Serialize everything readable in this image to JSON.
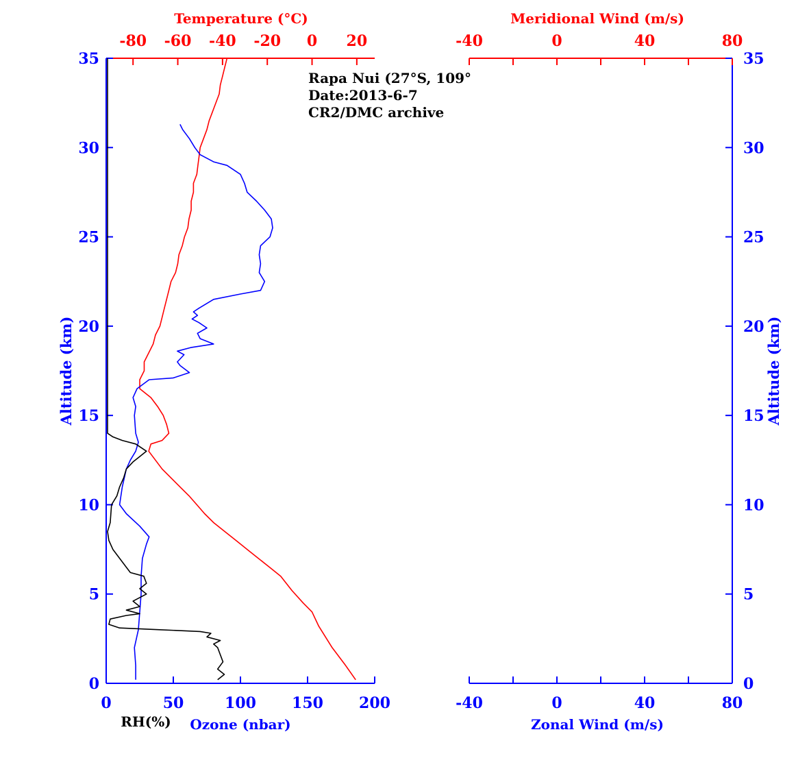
{
  "colors": {
    "red": "#ff0000",
    "blue": "#0000ff",
    "black": "#000000",
    "background": "#ffffff"
  },
  "left_panel": {
    "top_axis_label": "Temperature (°C)",
    "bottom_axis_label_ozone": "Ozone (nbar)",
    "bottom_axis_label_rh": "RH(%)",
    "y_axis_label": "Altitude (km)",
    "annotation": {
      "line1": "Rapa Nui (27°S, 109°",
      "line2": "Date:2013-6-7",
      "line3": "CR2/DMC archive"
    }
  },
  "right_panel": {
    "top_axis_label": "Meridional Wind (m/s)",
    "bottom_axis_label": "Zonal Wind (m/s)",
    "y_axis_label": "Altitude (km)"
  },
  "chart_data": [
    {
      "type": "line",
      "title": "",
      "ylabel": "Altitude (km)",
      "ylim": [
        0,
        35
      ],
      "yticks": [
        0,
        5,
        10,
        15,
        20,
        25,
        30,
        35
      ],
      "x_axes": {
        "temperature": {
          "label": "Temperature (°C)",
          "range": [
            -92,
            28
          ],
          "ticks": [
            -80,
            -60,
            -40,
            -20,
            0,
            20
          ],
          "position": "top"
        },
        "ozone": {
          "label": "Ozone (nbar)",
          "range": [
            0,
            200
          ],
          "ticks": [
            0,
            50,
            100,
            150,
            200
          ],
          "position": "bottom"
        },
        "rh": {
          "label": "RH(%)",
          "range": [
            0,
            200
          ],
          "position": "bottom"
        }
      },
      "series": [
        {
          "axis": "temperature",
          "color": "#ff0000",
          "points": [
            [
              19.5,
              0.2
            ],
            [
              15,
              1.0
            ],
            [
              9,
              2.0
            ],
            [
              3,
              3.2
            ],
            [
              0,
              4.0
            ],
            [
              -4,
              4.5
            ],
            [
              -9,
              5.2
            ],
            [
              -14,
              6.0
            ],
            [
              -19,
              6.5
            ],
            [
              -24,
              7.0
            ],
            [
              -29,
              7.5
            ],
            [
              -34,
              8.0
            ],
            [
              -39,
              8.5
            ],
            [
              -44,
              9.0
            ],
            [
              -48,
              9.5
            ],
            [
              -51.5,
              10.0
            ],
            [
              -55,
              10.5
            ],
            [
              -59,
              11.0
            ],
            [
              -63,
              11.5
            ],
            [
              -67,
              12.0
            ],
            [
              -70,
              12.5
            ],
            [
              -73,
              13.0
            ],
            [
              -72,
              13.4
            ],
            [
              -67,
              13.6
            ],
            [
              -64,
              14.0
            ],
            [
              -65,
              14.5
            ],
            [
              -66.5,
              15.0
            ],
            [
              -69,
              15.5
            ],
            [
              -72,
              16.0
            ],
            [
              -77,
              16.5
            ],
            [
              -77,
              17.0
            ],
            [
              -75,
              17.5
            ],
            [
              -75,
              18.0
            ],
            [
              -73,
              18.5
            ],
            [
              -71,
              19.0
            ],
            [
              -70,
              19.5
            ],
            [
              -68,
              20.0
            ],
            [
              -67,
              20.5
            ],
            [
              -66,
              21.0
            ],
            [
              -65,
              21.5
            ],
            [
              -64,
              22.0
            ],
            [
              -63,
              22.5
            ],
            [
              -61,
              23.0
            ],
            [
              -60,
              23.5
            ],
            [
              -59.5,
              24.0
            ],
            [
              -58,
              24.5
            ],
            [
              -57,
              25.0
            ],
            [
              -55.5,
              25.5
            ],
            [
              -55,
              26.0
            ],
            [
              -54,
              26.5
            ],
            [
              -54,
              27.0
            ],
            [
              -53,
              27.5
            ],
            [
              -53,
              28.0
            ],
            [
              -51.5,
              28.5
            ],
            [
              -51,
              29.0
            ],
            [
              -50.5,
              29.5
            ],
            [
              -50,
              30.0
            ],
            [
              -48.5,
              30.5
            ],
            [
              -47,
              31.0
            ],
            [
              -46,
              31.5
            ],
            [
              -44.5,
              32.0
            ],
            [
              -43,
              32.5
            ],
            [
              -41.5,
              33.0
            ],
            [
              -41,
              33.5
            ],
            [
              -40,
              34.0
            ],
            [
              -39,
              34.5
            ],
            [
              -38,
              35.0
            ]
          ]
        },
        {
          "axis": "ozone",
          "color": "#0000ff",
          "points": [
            [
              22,
              0.2
            ],
            [
              22,
              1.0
            ],
            [
              21,
              2.0
            ],
            [
              24,
              3.0
            ],
            [
              25,
              4.0
            ],
            [
              26,
              5.0
            ],
            [
              26,
              6.0
            ],
            [
              27,
              7.0
            ],
            [
              30,
              7.8
            ],
            [
              32,
              8.2
            ],
            [
              25,
              8.8
            ],
            [
              15,
              9.5
            ],
            [
              10,
              10.0
            ],
            [
              12,
              11.0
            ],
            [
              15,
              12.0
            ],
            [
              18,
              12.5
            ],
            [
              22,
              13.0
            ],
            [
              24,
              13.5
            ],
            [
              22,
              14.0
            ],
            [
              21,
              15.0
            ],
            [
              22,
              15.5
            ],
            [
              20,
              16.0
            ],
            [
              23,
              16.5
            ],
            [
              32,
              17.0
            ],
            [
              50,
              17.1
            ],
            [
              62,
              17.4
            ],
            [
              55,
              17.8
            ],
            [
              53,
              18.0
            ],
            [
              58,
              18.4
            ],
            [
              53,
              18.6
            ],
            [
              63,
              18.8
            ],
            [
              80,
              19.0
            ],
            [
              70,
              19.3
            ],
            [
              68,
              19.6
            ],
            [
              75,
              19.9
            ],
            [
              69,
              20.2
            ],
            [
              64,
              20.4
            ],
            [
              68,
              20.6
            ],
            [
              65,
              20.8
            ],
            [
              69,
              21.0
            ],
            [
              80,
              21.5
            ],
            [
              100,
              21.8
            ],
            [
              115,
              22.0
            ],
            [
              118,
              22.5
            ],
            [
              114,
              23.0
            ],
            [
              115,
              23.5
            ],
            [
              114,
              24.0
            ],
            [
              115,
              24.5
            ],
            [
              122,
              25.0
            ],
            [
              124,
              25.5
            ],
            [
              123,
              26.0
            ],
            [
              118,
              26.5
            ],
            [
              112,
              27.0
            ],
            [
              105,
              27.5
            ],
            [
              103,
              28.0
            ],
            [
              100,
              28.5
            ],
            [
              90,
              29.0
            ],
            [
              80,
              29.2
            ],
            [
              70,
              29.6
            ],
            [
              66,
              30.0
            ],
            [
              62,
              30.5
            ],
            [
              57,
              31.0
            ],
            [
              55,
              31.3
            ]
          ]
        },
        {
          "axis": "rh",
          "color": "#000000",
          "points": [
            [
              83,
              0.2
            ],
            [
              88,
              0.5
            ],
            [
              83,
              0.8
            ],
            [
              87,
              1.2
            ],
            [
              85,
              1.6
            ],
            [
              83,
              2.0
            ],
            [
              80,
              2.2
            ],
            [
              85,
              2.4
            ],
            [
              75,
              2.6
            ],
            [
              78,
              2.8
            ],
            [
              70,
              2.9
            ],
            [
              40,
              3.0
            ],
            [
              10,
              3.1
            ],
            [
              2,
              3.3
            ],
            [
              3,
              3.6
            ],
            [
              15,
              3.8
            ],
            [
              25,
              3.9
            ],
            [
              15,
              4.1
            ],
            [
              25,
              4.3
            ],
            [
              20,
              4.6
            ],
            [
              30,
              5.0
            ],
            [
              25,
              5.3
            ],
            [
              30,
              5.6
            ],
            [
              28,
              6.0
            ],
            [
              18,
              6.2
            ],
            [
              15,
              6.5
            ],
            [
              10,
              7.0
            ],
            [
              5,
              7.5
            ],
            [
              2,
              8.0
            ],
            [
              1,
              8.5
            ],
            [
              3,
              9.0
            ],
            [
              4,
              10.0
            ],
            [
              8,
              10.5
            ],
            [
              10,
              11.0
            ],
            [
              13,
              11.5
            ],
            [
              15,
              12.0
            ],
            [
              20,
              12.4
            ],
            [
              25,
              12.7
            ],
            [
              30,
              13.0
            ],
            [
              22,
              13.4
            ],
            [
              12,
              13.6
            ],
            [
              5,
              13.8
            ],
            [
              1,
              14.0
            ],
            [
              1,
              16.0
            ],
            [
              1,
              20.0
            ],
            [
              1,
              25.0
            ],
            [
              1,
              30.0
            ],
            [
              1,
              35.0
            ]
          ]
        }
      ]
    },
    {
      "type": "line",
      "title": "",
      "ylabel": "Altitude (km)",
      "ylim": [
        0,
        35
      ],
      "yticks": [
        0,
        5,
        10,
        15,
        20,
        25,
        30,
        35
      ],
      "x_axes": {
        "meridional_wind": {
          "label": "Meridional Wind (m/s)",
          "range": [
            -40,
            80
          ],
          "ticks": [
            -40,
            0,
            40,
            80
          ],
          "position": "top"
        },
        "zonal_wind": {
          "label": "Zonal Wind (m/s)",
          "range": [
            -40,
            80
          ],
          "ticks": [
            -40,
            0,
            40,
            80
          ],
          "position": "bottom"
        }
      },
      "series": []
    }
  ]
}
